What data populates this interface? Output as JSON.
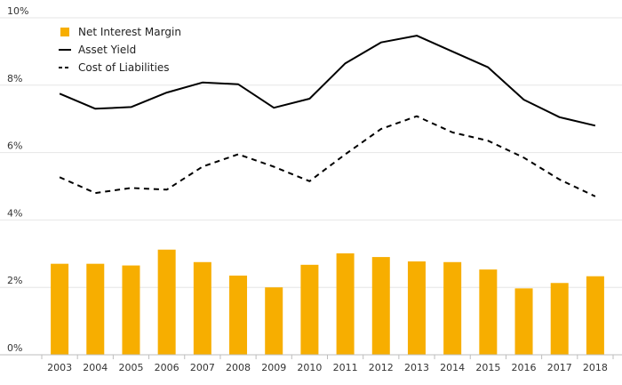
{
  "chart_data": {
    "type": "bar",
    "categories": [
      "2003",
      "2004",
      "2005",
      "2006",
      "2007",
      "2008",
      "2009",
      "2010",
      "2011",
      "2012",
      "2013",
      "2014",
      "2015",
      "2016",
      "2017",
      "2018"
    ],
    "series": [
      {
        "name": "Net Interest Margin",
        "type": "bar",
        "color": "#F7AE00",
        "values": [
          2.7,
          2.7,
          2.65,
          3.12,
          2.75,
          2.35,
          2.0,
          2.67,
          3.01,
          2.9,
          2.77,
          2.75,
          2.53,
          1.97,
          2.13,
          2.33
        ]
      },
      {
        "name": "Asset Yield",
        "type": "line",
        "line_style": "solid",
        "color": "#000000",
        "values": [
          7.75,
          7.3,
          7.35,
          7.78,
          8.08,
          8.03,
          7.33,
          7.6,
          8.65,
          9.27,
          9.47,
          9.0,
          8.53,
          7.57,
          7.05,
          6.8
        ]
      },
      {
        "name": "Cost of Liabilities",
        "type": "line",
        "line_style": "dashed",
        "color": "#000000",
        "values": [
          5.27,
          4.8,
          4.95,
          4.9,
          5.58,
          5.95,
          5.58,
          5.15,
          5.95,
          6.7,
          7.08,
          6.6,
          6.35,
          5.85,
          5.2,
          4.7
        ]
      }
    ],
    "y_ticks": [
      "0%",
      "2%",
      "4%",
      "6%",
      "8%",
      "10%"
    ],
    "ylim": [
      0,
      10
    ],
    "grid": true,
    "legend_placement": "top-left",
    "title": "",
    "xlabel": "",
    "ylabel": ""
  }
}
